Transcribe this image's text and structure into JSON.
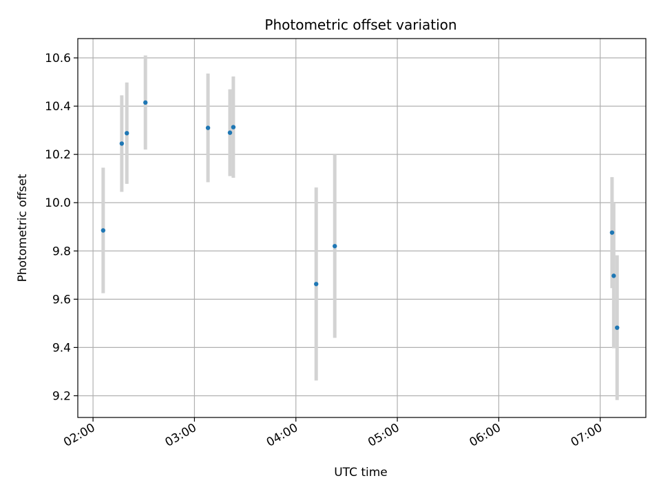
{
  "chart_data": {
    "type": "scatter",
    "title": "Photometric offset variation",
    "xlabel": "UTC time",
    "ylabel": "Photometric offset",
    "x_tick_labels": [
      "02:00",
      "03:00",
      "04:00",
      "05:00",
      "06:00",
      "07:00"
    ],
    "y_tick_labels": [
      "9.2",
      "9.4",
      "9.6",
      "9.8",
      "10.0",
      "10.2",
      "10.4",
      "10.6"
    ],
    "y_ticks": [
      9.2,
      9.4,
      9.6,
      9.8,
      10.0,
      10.2,
      10.4,
      10.6
    ],
    "xlim": [
      "01:51",
      "07:27"
    ],
    "ylim": [
      9.11,
      10.68
    ],
    "grid": true,
    "colors": {
      "point": "#1f77b4",
      "errorbar": "#d3d3d3",
      "grid": "#b0b0b0"
    },
    "points": [
      {
        "x": "02:06",
        "y": 9.885,
        "yerr": 0.26
      },
      {
        "x": "02:17",
        "y": 10.245,
        "yerr": 0.2
      },
      {
        "x": "02:20",
        "y": 10.288,
        "yerr": 0.21
      },
      {
        "x": "02:31",
        "y": 10.415,
        "yerr": 0.195
      },
      {
        "x": "03:08",
        "y": 10.31,
        "yerr": 0.225
      },
      {
        "x": "03:21",
        "y": 10.29,
        "yerr": 0.18
      },
      {
        "x": "03:23",
        "y": 10.313,
        "yerr": 0.21
      },
      {
        "x": "04:12",
        "y": 9.663,
        "yerr": 0.4
      },
      {
        "x": "04:23",
        "y": 9.82,
        "yerr": 0.38
      },
      {
        "x": "07:07",
        "y": 9.876,
        "yerr": 0.23
      },
      {
        "x": "07:08",
        "y": 9.697,
        "yerr": 0.3
      },
      {
        "x": "07:10",
        "y": 9.482,
        "yerr": 0.3
      }
    ]
  }
}
